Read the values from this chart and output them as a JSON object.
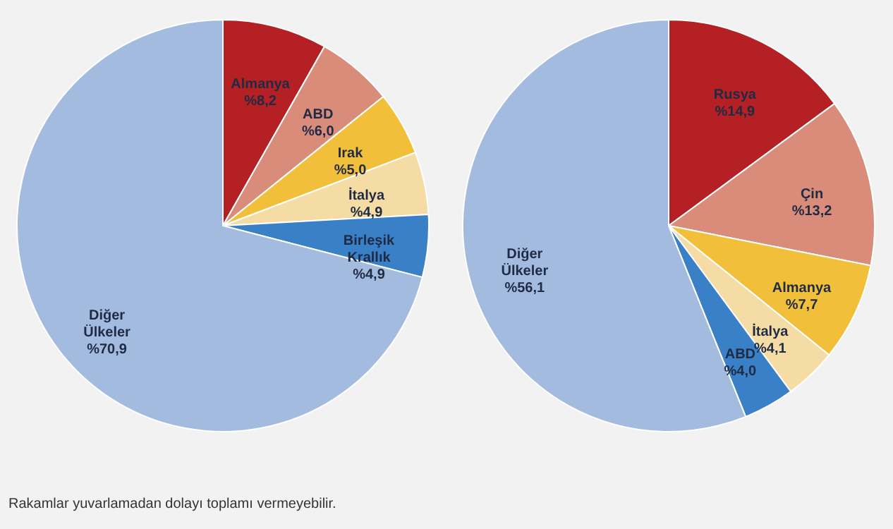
{
  "chart_data": [
    {
      "type": "pie",
      "categories": [
        "Almanya",
        "ABD",
        "Irak",
        "İtalya",
        "Birleşik Krallık",
        "Diğer Ülkeler"
      ],
      "values": [
        8.2,
        6.0,
        5.0,
        4.9,
        4.9,
        70.9
      ],
      "value_labels": [
        "%8,2",
        "%6,0",
        "%5,0",
        "%4,9",
        "%4,9",
        "%70,9"
      ],
      "colors": [
        "#b52025",
        "#d98c7a",
        "#f2bf3a",
        "#f5dca5",
        "#3a80c6",
        "#a3bbde"
      ],
      "annotations": [
        "Rakamlar yuvarlamadan dolayı toplamı vermeyebilir."
      ]
    },
    {
      "type": "pie",
      "categories": [
        "Rusya",
        "Çin",
        "Almanya",
        "İtalya",
        "ABD",
        "Diğer Ülkeler"
      ],
      "values": [
        14.9,
        13.2,
        7.7,
        4.1,
        4.0,
        56.1
      ],
      "value_labels": [
        "%14,9",
        "%13,2",
        "%7,7",
        "%4,1",
        "%4,0",
        "%56,1"
      ],
      "colors": [
        "#b52025",
        "#d98c7a",
        "#f2bf3a",
        "#f5dca5",
        "#3a80c6",
        "#a3bbde"
      ]
    }
  ]
}
